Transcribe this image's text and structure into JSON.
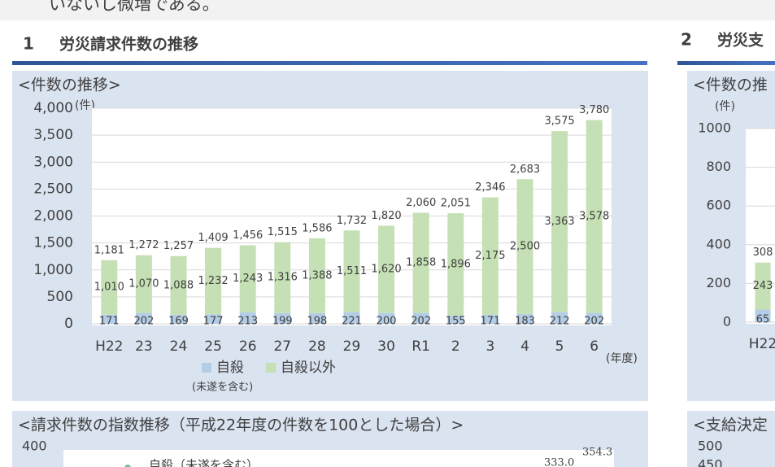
{
  "intro_text": "いないし微増である。",
  "sections": [
    {
      "number": "1",
      "title": "労災請求件数の推移"
    },
    {
      "number": "2",
      "title": "労災支"
    }
  ],
  "chart_data": [
    {
      "type": "bar",
      "stacked": true,
      "subtitle": "<件数の推移>",
      "y_unit": "(件)",
      "x_unit": "(年度)",
      "legend_note": "(未遂を含む)",
      "categories": [
        "H22",
        "23",
        "24",
        "25",
        "26",
        "27",
        "28",
        "29",
        "30",
        "R1",
        "2",
        "3",
        "4",
        "5",
        "6"
      ],
      "series": [
        {
          "name": "自殺",
          "color": "#b4cde6",
          "label_color": "#2f5597",
          "values": [
            171,
            202,
            169,
            177,
            213,
            199,
            198,
            221,
            200,
            202,
            155,
            171,
            183,
            212,
            202
          ]
        },
        {
          "name": "自殺以外",
          "color": "#c5e0b4",
          "label_color": "#404040",
          "values": [
            1010,
            1070,
            1088,
            1232,
            1243,
            1316,
            1388,
            1511,
            1620,
            1858,
            1896,
            2175,
            2500,
            3363,
            3578
          ],
          "value_labels": [
            "1,010",
            "1,070",
            "1,088",
            "1,232",
            "1,243",
            "1,316",
            "1,388",
            "1,511",
            "1,620",
            "1,858",
            "1,896",
            "2,175",
            "2,500",
            "3,363",
            "3,578"
          ]
        }
      ],
      "totals": [
        1181,
        1272,
        1257,
        1409,
        1456,
        1515,
        1586,
        1732,
        1820,
        2060,
        2051,
        2346,
        2683,
        3575,
        3780
      ],
      "total_labels": [
        "1,181",
        "1,272",
        "1,257",
        "1,409",
        "1,456",
        "1,515",
        "1,586",
        "1,732",
        "1,820",
        "2,060",
        "2,051",
        "2,346",
        "2,683",
        "3,575",
        "3,780"
      ],
      "ylim": [
        0,
        4000
      ],
      "yticks": [
        0,
        500,
        {
          "value": 1000,
          "label": "1,000"
        },
        {
          "value": 1500,
          "label": "1,500"
        },
        {
          "value": 2000,
          "label": "2,000"
        },
        {
          "value": 2500,
          "label": "2,500"
        },
        {
          "value": 3000,
          "label": "3,000"
        },
        {
          "value": 3500,
          "label": "3,500"
        },
        {
          "value": 4000,
          "label": "4,000"
        }
      ],
      "grid": true
    },
    {
      "type": "bar",
      "stacked": true,
      "subtitle": "<件数の推",
      "y_unit": "(件)",
      "categories": [
        "H22"
      ],
      "series": [
        {
          "color": "#b4cde6",
          "label_color": "#2f5597",
          "values": [
            65
          ]
        },
        {
          "color": "#c5e0b4",
          "label_color": "#404040",
          "values": [
            243
          ]
        }
      ],
      "totals": [
        308
      ],
      "ylim": [
        0,
        1000
      ],
      "yticks": [
        0,
        200,
        400,
        600,
        800,
        1000
      ],
      "grid": true
    }
  ],
  "panels": [
    {
      "title": "<請求件数の指数推移（平成22年度の件数を100とした場合）>",
      "tick_labels": [
        "400"
      ],
      "legend": "自殺（未遂を含む）",
      "labels": [
        "354.3",
        "333.0"
      ]
    },
    {
      "title": "<支給決定",
      "tick_labels": [
        "500",
        "450"
      ]
    }
  ]
}
